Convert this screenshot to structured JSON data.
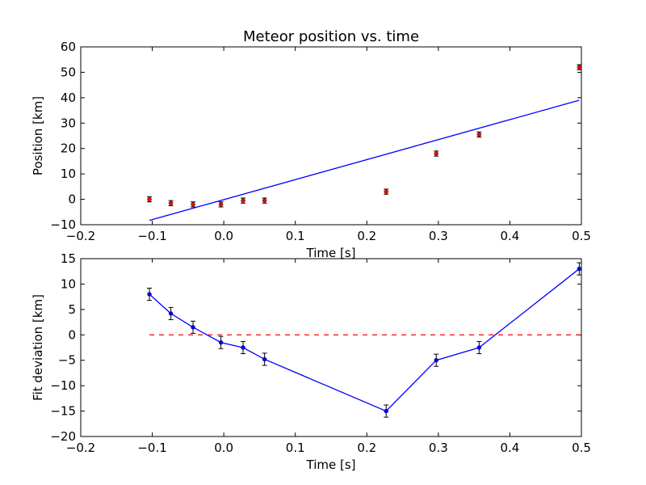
{
  "chart_data": [
    {
      "type": "scatter",
      "title": "Meteor position vs. time",
      "xlabel": "Time [s]",
      "ylabel": "Position [km]",
      "xlim": [
        -0.2,
        0.5
      ],
      "ylim": [
        -10,
        60
      ],
      "xticks": [
        -0.2,
        -0.1,
        0.0,
        0.1,
        0.2,
        0.3,
        0.4,
        0.5
      ],
      "yticks": [
        -10,
        0,
        10,
        20,
        30,
        40,
        50,
        60
      ],
      "xtick_labels": [
        "−0.2",
        "−0.1",
        "0.0",
        "0.1",
        "0.2",
        "0.3",
        "0.4",
        "0.5"
      ],
      "ytick_labels": [
        "−10",
        "0",
        "10",
        "20",
        "30",
        "40",
        "50",
        "60"
      ],
      "grid": false,
      "legend": "none",
      "series": [
        {
          "kind": "errorbar-points",
          "color": "#ff0000",
          "x": [
            -0.104,
            -0.074,
            -0.043,
            -0.004,
            0.027,
            0.057,
            0.227,
            0.297,
            0.357,
            0.497
          ],
          "y": [
            0,
            -1.5,
            -2,
            -2,
            -0.5,
            -0.5,
            3,
            18,
            25.5,
            52
          ],
          "err": [
            1,
            1,
            1,
            1,
            1,
            1,
            1,
            1,
            1,
            1
          ]
        },
        {
          "kind": "line",
          "color": "#0000ff",
          "x": [
            -0.104,
            0.497
          ],
          "y": [
            -8.3,
            39
          ]
        }
      ]
    },
    {
      "type": "line",
      "title": "",
      "xlabel": "Time [s]",
      "ylabel": "Fit deviation [km]",
      "xlim": [
        -0.2,
        0.5
      ],
      "ylim": [
        -20,
        15
      ],
      "xticks": [
        -0.2,
        -0.1,
        0.0,
        0.1,
        0.2,
        0.3,
        0.4,
        0.5
      ],
      "yticks": [
        -20,
        -15,
        -10,
        -5,
        0,
        5,
        10,
        15
      ],
      "xtick_labels": [
        "−0.2",
        "−0.1",
        "0.0",
        "0.1",
        "0.2",
        "0.3",
        "0.4",
        "0.5"
      ],
      "ytick_labels": [
        "−20",
        "−15",
        "−10",
        "−5",
        "0",
        "5",
        "10",
        "15"
      ],
      "grid": false,
      "legend": "none",
      "series": [
        {
          "kind": "errorbar-line",
          "color": "#0000ff",
          "x": [
            -0.104,
            -0.074,
            -0.043,
            -0.004,
            0.027,
            0.057,
            0.227,
            0.297,
            0.357,
            0.497
          ],
          "y": [
            8,
            4.2,
            1.5,
            -1.5,
            -2.5,
            -4.8,
            -15,
            -5,
            -2.5,
            13
          ],
          "err": [
            1.2,
            1.2,
            1.2,
            1.2,
            1.2,
            1.2,
            1.2,
            1.2,
            1.2,
            1.2
          ]
        },
        {
          "kind": "dashed-line",
          "color": "#ff0000",
          "x": [
            -0.104,
            0.497
          ],
          "y": [
            0,
            0
          ]
        }
      ]
    }
  ]
}
